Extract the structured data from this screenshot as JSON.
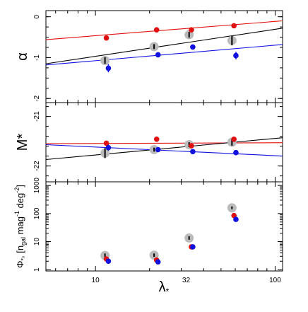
{
  "chart_data": [
    {
      "type": "scatter",
      "ylabel": "α",
      "xscale": "log",
      "xlim": [
        5.3,
        110
      ],
      "ylim": [
        -2.1,
        0.15
      ],
      "y_inverted": true,
      "yticks": [
        {
          "value": 0,
          "label": "0"
        },
        {
          "value": -1,
          "label": "-1"
        },
        {
          "value": -2,
          "label": "-2"
        }
      ],
      "fit_lines": [
        {
          "color": "#e01010",
          "x": [
            5.3,
            110
          ],
          "y": [
            -0.56,
            -0.1
          ]
        },
        {
          "color": "#000000",
          "x": [
            5.3,
            110
          ],
          "y": [
            -1.15,
            -0.28
          ]
        },
        {
          "color": "#1010e0",
          "x": [
            5.3,
            110
          ],
          "y": [
            -1.18,
            -0.68
          ]
        }
      ],
      "series": [
        {
          "color": "#bbbbbb",
          "marker": "large-circle",
          "x": [
            11.3,
            21.2,
            33.2,
            57.5
          ],
          "y": [
            -1.07,
            -0.73,
            -0.44,
            -0.58
          ],
          "yerr": [
            0.08,
            0.06,
            0.07,
            0.12
          ]
        },
        {
          "color": "#e01010",
          "marker": "circle",
          "x": [
            11.5,
            21.9,
            34.2,
            59.0
          ],
          "y": [
            -0.52,
            -0.32,
            -0.32,
            -0.22
          ],
          "yerr": [
            0.03,
            0.02,
            0.03,
            0.02
          ]
        },
        {
          "color": "#1010e0",
          "marker": "circle",
          "x": [
            11.8,
            22.3,
            34.8,
            60.5
          ],
          "y": [
            -1.26,
            -0.93,
            -0.74,
            -0.95
          ],
          "yerr": [
            0.1,
            0.04,
            0.05,
            0.09
          ]
        }
      ]
    },
    {
      "type": "scatter",
      "ylabel": "M*",
      "xscale": "log",
      "xlim": [
        5.3,
        110
      ],
      "ylim": [
        -22.32,
        -20.72
      ],
      "y_inverted": true,
      "yticks": [
        {
          "value": -21,
          "label": "-21"
        },
        {
          "value": -22,
          "label": "-22"
        }
      ],
      "fit_lines": [
        {
          "color": "#e01010",
          "x": [
            5.3,
            110
          ],
          "y": [
            -21.55,
            -21.53
          ]
        },
        {
          "color": "#000000",
          "x": [
            5.3,
            110
          ],
          "y": [
            -21.87,
            -21.43
          ]
        },
        {
          "color": "#1010e0",
          "x": [
            5.3,
            110
          ],
          "y": [
            -21.57,
            -21.8
          ]
        }
      ],
      "series": [
        {
          "color": "#bbbbbb",
          "marker": "large-circle",
          "x": [
            11.3,
            21.2,
            33.2,
            57.5
          ],
          "y": [
            -21.74,
            -21.67,
            -21.57,
            -21.52
          ],
          "yerr": [
            0.1,
            0.04,
            0.05,
            0.07
          ]
        },
        {
          "color": "#e01010",
          "marker": "circle",
          "x": [
            11.5,
            21.9,
            34.2,
            59.0
          ],
          "y": [
            -21.54,
            -21.46,
            -21.59,
            -21.46
          ],
          "yerr": [
            0.03,
            0.02,
            0.03,
            0.04
          ]
        },
        {
          "color": "#1010e0",
          "marker": "circle",
          "x": [
            11.8,
            22.3,
            34.8,
            60.5
          ],
          "y": [
            -21.63,
            -21.67,
            -21.71,
            -21.73
          ],
          "yerr": [
            0.06,
            0.04,
            0.03,
            0.05
          ]
        }
      ]
    },
    {
      "type": "scatter",
      "ylabel_main": "Φ",
      "ylabel_sub": "*",
      "ylabel_units": "[n",
      "ylabel_units_sub": "gal",
      "ylabel_units_rest": " mag",
      "ylabel_exp1": "-1",
      "ylabel_deg": " deg",
      "ylabel_exp2": "-2",
      "ylabel_close": "]",
      "xlabel": "λ",
      "xlabel_sub": "*",
      "xscale": "log",
      "yscale": "log",
      "xlim": [
        5.3,
        110
      ],
      "ylim": [
        0.9,
        1350
      ],
      "yticks": [
        {
          "value": 1,
          "label": "1"
        },
        {
          "value": 10,
          "label": "10"
        },
        {
          "value": 100,
          "label": "100"
        },
        {
          "value": 1000,
          "label": "1000"
        }
      ],
      "xticks": [
        {
          "value": 10,
          "label": "10"
        },
        {
          "value": 32,
          "label": "32"
        },
        {
          "value": 100,
          "label": "100"
        }
      ],
      "series": [
        {
          "color": "#bbbbbb",
          "marker": "large-circle",
          "x": [
            11.3,
            21.2,
            33.2,
            57.5
          ],
          "y": [
            3.2,
            3.3,
            13.5,
            160
          ],
          "yerr_factor": [
            1.18,
            1.15,
            1.15,
            1.12
          ]
        },
        {
          "color": "#e01010",
          "marker": "circle",
          "x": [
            11.5,
            21.9,
            34.2,
            59.0
          ],
          "y": [
            2.4,
            2.2,
            6.5,
            85
          ],
          "yerr_factor": [
            1.0,
            1.0,
            1.0,
            1.0
          ]
        },
        {
          "color": "#1010e0",
          "marker": "circle",
          "x": [
            11.8,
            22.3,
            34.8,
            60.5
          ],
          "y": [
            2.0,
            1.9,
            6.5,
            62
          ],
          "yerr_factor": [
            1.15,
            1.05,
            1.04,
            1.05
          ]
        }
      ]
    }
  ]
}
